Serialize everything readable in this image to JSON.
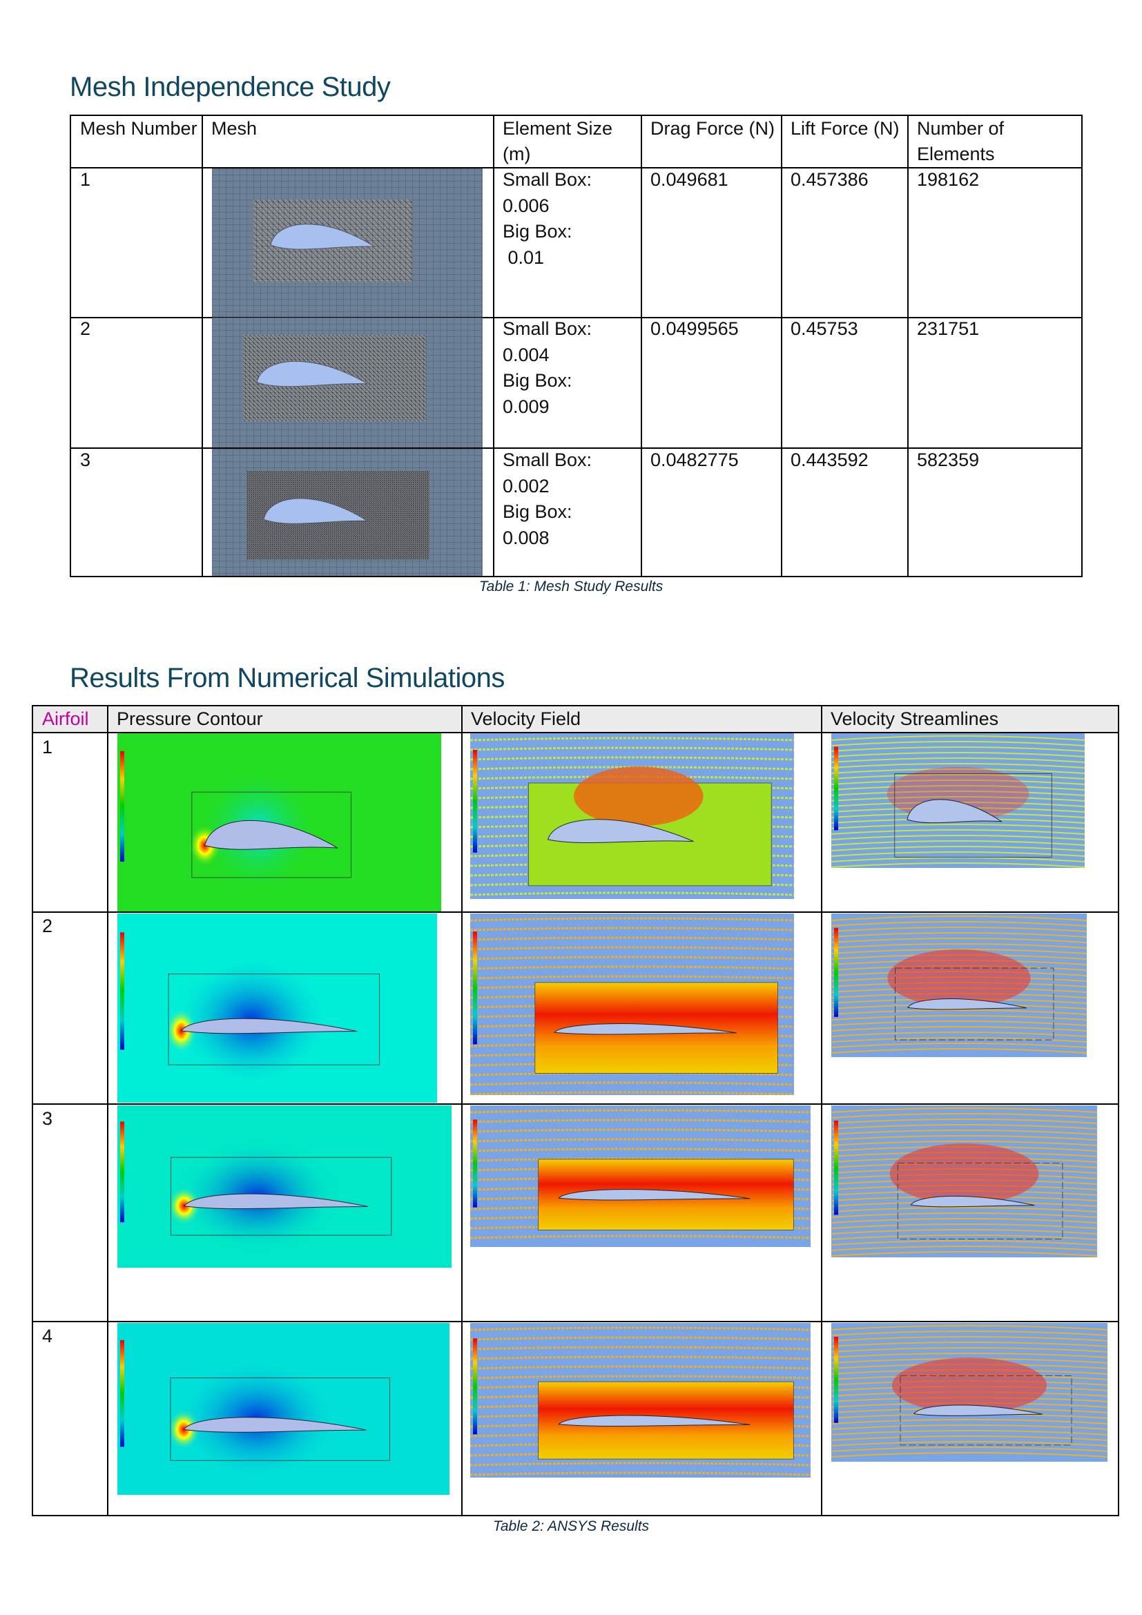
{
  "mesh_study": {
    "title": "Mesh Independence Study",
    "headers": [
      "Mesh Number",
      "Mesh",
      "Element Size (m)",
      "Drag Force (N)",
      "Lift Force (N)",
      "Number of Elements"
    ],
    "rows": [
      {
        "number": "1",
        "size_lines": [
          "Small Box:",
          "0.006",
          "Big Box:",
          " 0.01"
        ],
        "drag": "0.049681",
        "lift": "0.457386",
        "elements": "198162"
      },
      {
        "number": "2",
        "size_lines": [
          "Small Box:",
          "0.004",
          "Big Box:",
          "0.009"
        ],
        "drag": "0.0499565",
        "lift": "0.45753",
        "elements": "231751"
      },
      {
        "number": "3",
        "size_lines": [
          "Small Box:",
          "0.002",
          "Big Box:",
          "0.008"
        ],
        "drag": "0.0482775",
        "lift": "0.443592",
        "elements": "582359"
      }
    ],
    "caption": "Table 1: Mesh Study Results"
  },
  "results": {
    "title": "Results From Numerical Simulations",
    "headers": [
      "Airfoil",
      "Pressure Contour",
      "Velocity Field",
      "Velocity Streamlines"
    ],
    "airfoil_header_color": "#c000a0",
    "rows": [
      "1",
      "2",
      "3",
      "4"
    ],
    "caption": "Table 2: ANSYS Results"
  },
  "colors": {
    "heading": "#0f4761",
    "mesh_bg": "#6a7f96",
    "airfoil_fill": "#a8c0f0"
  }
}
